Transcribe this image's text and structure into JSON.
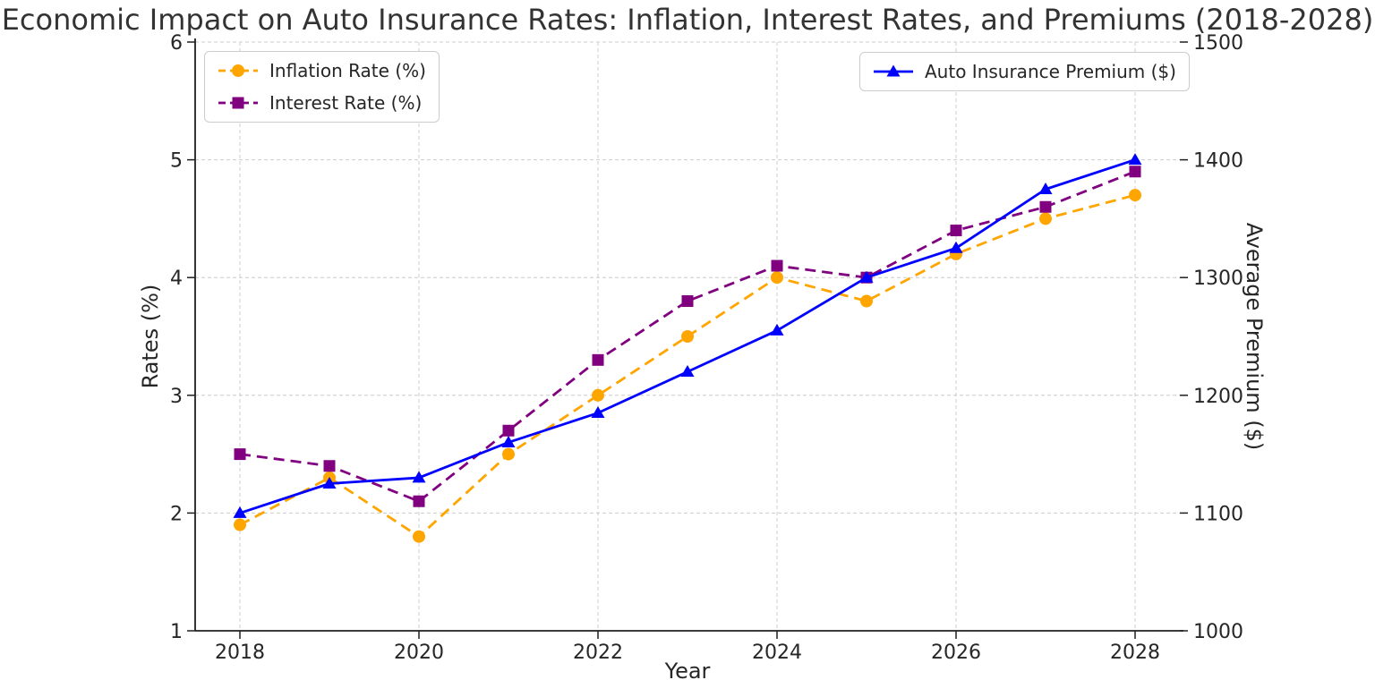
{
  "chart_data": {
    "type": "line",
    "title": "Economic Impact on Auto Insurance Rates: Inflation, Interest Rates, and Premiums (2018-2028)",
    "xlabel": "Year",
    "ylabel_left": "Rates (%)",
    "ylabel_right": "Average Premium ($)",
    "x": [
      2018,
      2019,
      2020,
      2021,
      2022,
      2023,
      2024,
      2025,
      2026,
      2027,
      2028
    ],
    "x_ticks": [
      2018,
      2020,
      2022,
      2024,
      2026,
      2028
    ],
    "xlim": [
      2017.5,
      2028.5
    ],
    "y_left": {
      "lim": [
        1,
        6
      ],
      "ticks": [
        1,
        2,
        3,
        4,
        5,
        6
      ]
    },
    "y_right": {
      "lim": [
        1000,
        1500
      ],
      "ticks": [
        1000,
        1100,
        1200,
        1300,
        1400,
        1500
      ]
    },
    "grid": true,
    "series": [
      {
        "name": "Inflation Rate (%)",
        "axis": "left",
        "color": "#FFA500",
        "marker": "circle",
        "dash": true,
        "legend": "left",
        "values": [
          1.9,
          2.3,
          1.8,
          2.5,
          3.0,
          3.5,
          4.0,
          3.8,
          4.2,
          4.5,
          4.7
        ]
      },
      {
        "name": "Interest Rate (%)",
        "axis": "left",
        "color": "#800080",
        "marker": "square",
        "dash": true,
        "legend": "left",
        "values": [
          2.5,
          2.4,
          2.1,
          2.7,
          3.3,
          3.8,
          4.1,
          4.0,
          4.4,
          4.6,
          4.9
        ]
      },
      {
        "name": "Auto Insurance Premium ($)",
        "axis": "right",
        "color": "#0000FF",
        "marker": "triangle",
        "dash": false,
        "legend": "right",
        "values": [
          1100,
          1125,
          1130,
          1160,
          1185,
          1220,
          1255,
          1300,
          1325,
          1375,
          1400
        ]
      }
    ],
    "colors": {
      "grid": "#cccccc",
      "spine": "#1f1f1f",
      "text": "#262626",
      "legend_border": "#cccccc"
    }
  }
}
